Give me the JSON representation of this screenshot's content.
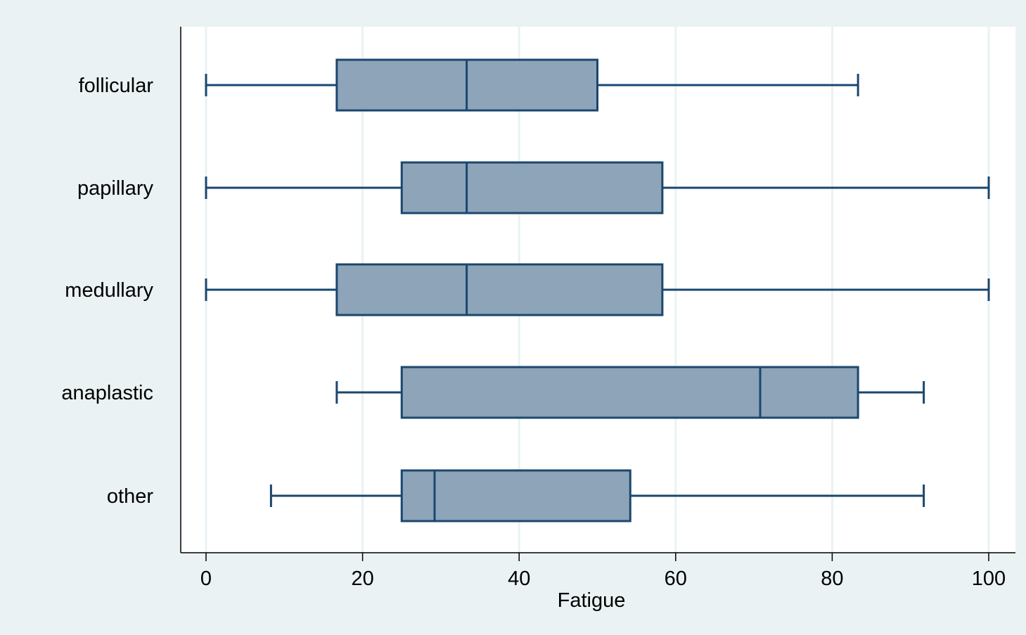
{
  "chart_data": {
    "type": "boxplot",
    "orientation": "horizontal",
    "xlabel": "Fatigue",
    "ylabel": "",
    "title": "",
    "xlim": [
      0,
      100
    ],
    "xticks": [
      0,
      20,
      40,
      60,
      80,
      100
    ],
    "xtick_labels": [
      "0",
      "20",
      "40",
      "60",
      "80",
      "100"
    ],
    "grid": true,
    "categories": [
      "follicular",
      "papillary",
      "medullary",
      "anaplastic",
      "other"
    ],
    "boxes": [
      {
        "category": "follicular",
        "whisker_low": 0,
        "q1": 16.7,
        "median": 33.3,
        "q3": 50.0,
        "whisker_high": 83.3
      },
      {
        "category": "papillary",
        "whisker_low": 0,
        "q1": 25.0,
        "median": 33.3,
        "q3": 58.3,
        "whisker_high": 100
      },
      {
        "category": "medullary",
        "whisker_low": 0,
        "q1": 16.7,
        "median": 33.3,
        "q3": 58.3,
        "whisker_high": 100
      },
      {
        "category": "anaplastic",
        "whisker_low": 16.7,
        "q1": 25.0,
        "median": 70.8,
        "q3": 83.3,
        "whisker_high": 91.7
      },
      {
        "category": "other",
        "whisker_low": 8.3,
        "q1": 25.0,
        "median": 29.2,
        "q3": 54.2,
        "whisker_high": 91.7
      }
    ],
    "colors": {
      "background": "#eaf2f3",
      "plot_background": "#ffffff",
      "grid": "#eaf2f3",
      "box_fill": "#8ea4b8",
      "line": "#1a476f",
      "axis": "#000000"
    }
  }
}
